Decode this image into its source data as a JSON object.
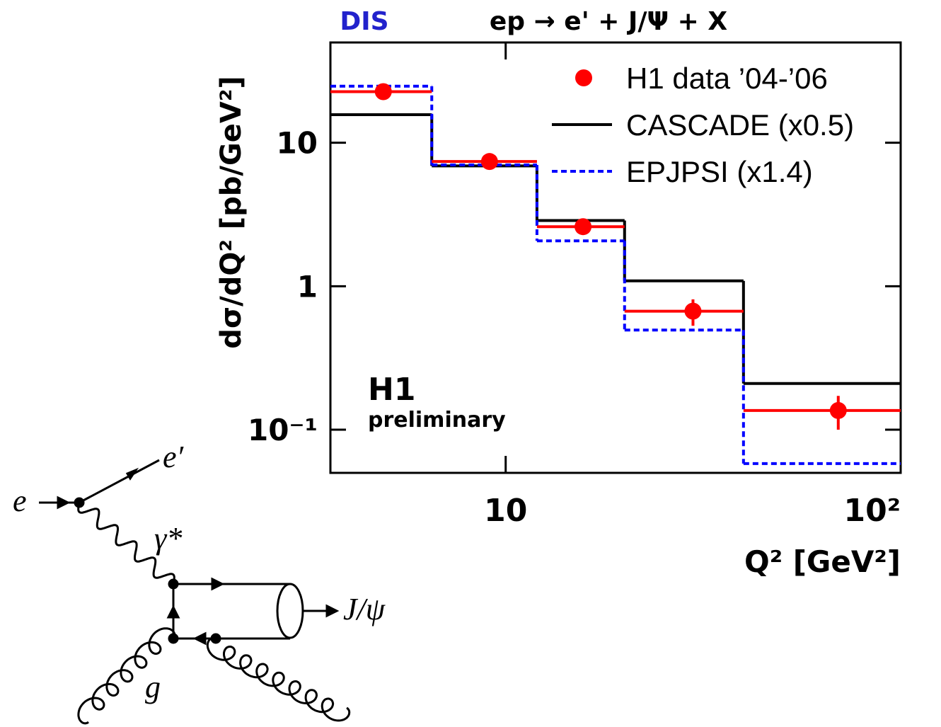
{
  "chart_data": {
    "type": "histogram",
    "title": "ep → e' + J/Ψ + X",
    "process_label": "DIS",
    "xlabel": "Q² [GeV²]",
    "ylabel": "dσ/dQ² [pb/GeV²]",
    "annotations": [
      "H1",
      "preliminary"
    ],
    "bins": [
      3.6,
      6.5,
      12,
      20,
      40,
      100
    ],
    "xlim": [
      3.6,
      100
    ],
    "ylim": [
      0.05,
      50
    ],
    "log_x": true,
    "log_y": true,
    "xticks": [
      10,
      {
        "value": 100,
        "label": "10²"
      }
    ],
    "yticks": [
      {
        "value": 0.1,
        "label": "10⁻¹"
      },
      1,
      10
    ],
    "legend": "upper right",
    "series": [
      {
        "name": "H1 data ’04-’06",
        "color": "#ff0000",
        "style": "points",
        "x": [
          4.9,
          9.1,
          15.7,
          29.8,
          69.5
        ],
        "values": [
          22.7,
          7.4,
          2.6,
          0.67,
          0.136
        ],
        "errors": [
          1.5,
          0.5,
          0.2,
          0.14,
          0.036
        ]
      },
      {
        "name": "CASCADE (x0.5)",
        "color": "#000000",
        "style": "step",
        "values": [
          15.7,
          6.9,
          2.87,
          1.09,
          0.21
        ]
      },
      {
        "name": "EPJPSI (x1.4)",
        "color": "#0000ff",
        "style": "dashed-step",
        "values": [
          24.8,
          7.0,
          2.07,
          0.495,
          0.058
        ]
      }
    ]
  },
  "diagram": {
    "labels": [
      "e",
      "e′",
      "γ*",
      "J/ψ",
      "g"
    ]
  }
}
